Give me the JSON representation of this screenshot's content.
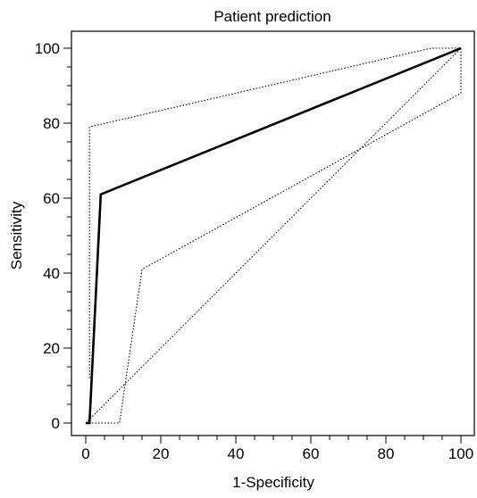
{
  "chart_data": {
    "type": "line",
    "title": "Patient prediction",
    "xlabel": "1-Specificity",
    "ylabel": "Sensitivity",
    "xlim": [
      0,
      100
    ],
    "ylim": [
      0,
      100
    ],
    "x_ticks": [
      0,
      20,
      40,
      60,
      80,
      100
    ],
    "y_ticks": [
      0,
      20,
      40,
      60,
      80,
      100
    ],
    "x_tick_labels": [
      "0",
      "20",
      "40",
      "60",
      "80",
      "100"
    ],
    "y_tick_labels": [
      "0",
      "20",
      "40",
      "60",
      "80",
      "100"
    ],
    "grid": false,
    "legend": "none",
    "series": [
      {
        "style": "solid",
        "color": "#000000",
        "x": [
          0,
          1,
          4,
          100
        ],
        "y": [
          0,
          0,
          61,
          100
        ]
      },
      {
        "style": "dotted",
        "color": "#000000",
        "x": [
          1,
          1,
          92,
          100
        ],
        "y": [
          12,
          79,
          100,
          100
        ]
      },
      {
        "style": "dotted",
        "color": "#000000",
        "x": [
          0,
          9,
          15,
          100,
          100
        ],
        "y": [
          0,
          0,
          41,
          88,
          100
        ]
      },
      {
        "style": "dotted",
        "color": "#000000",
        "x": [
          0,
          100
        ],
        "y": [
          0,
          100
        ]
      }
    ]
  }
}
